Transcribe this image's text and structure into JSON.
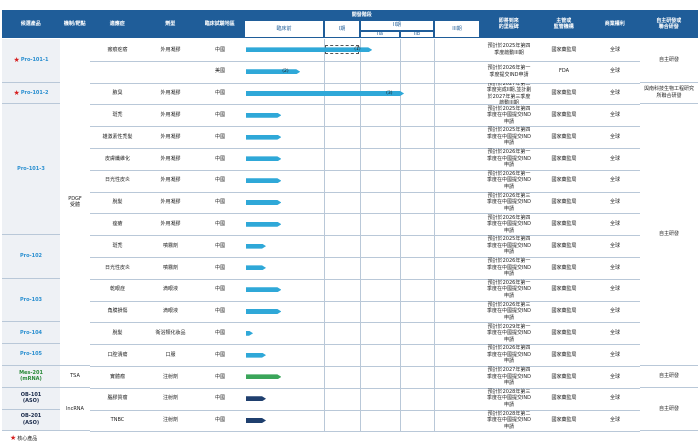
{
  "headers": {
    "candidate": "候選產品",
    "mechanism": "機制/靶點",
    "indication": "適應症",
    "dosage": "劑型",
    "region": "臨床試驗地區",
    "progress": "開發階段",
    "preclinical": "臨床前",
    "phase1": "I期",
    "phase2": "II期",
    "phase2a": "IIa",
    "phase2b": "IIb",
    "phase3": "III期",
    "milestone": "即將到來\n的里程碑",
    "regulator": "主管或\n監管機構",
    "rights": "商業權利",
    "partner": "自主研發或\n聯合研發"
  },
  "rows": [
    {
      "indication": "瘢痕疙瘩",
      "dosage": "外用凝膠",
      "region": "中國",
      "milestone": "預計於2025年第四季度啟動III期",
      "regulator": "國家藥監局",
      "rights": "全球",
      "bar_end": 0.535,
      "bar_label": "(1)",
      "color": "#2fa8d8"
    },
    {
      "indication": "",
      "dosage": "",
      "region": "美國",
      "milestone": "預計於2026年第一季度提交IND申請",
      "regulator": "FDA",
      "rights": "全球",
      "bar_end": 0.23,
      "bar_label": "(2)",
      "color": "#2fa8d8"
    },
    {
      "indication": "腋臭",
      "dosage": "外用凝膠",
      "region": "中國",
      "milestone": "預計於2027年第二季度完成II期,並計劃於2027年第三季度啟動III期",
      "regulator": "國家藥監局",
      "rights": "全球",
      "bar_end": 0.67,
      "bar_label": "(3)",
      "color": "#2fa8d8"
    },
    {
      "indication": "斑禿",
      "dosage": "外用凝膠",
      "region": "中國",
      "milestone": "預計於2025年第四季度在中國提交IND申請",
      "regulator": "國家藥監局",
      "rights": "全球",
      "bar_end": 0.15,
      "bar_label": "",
      "color": "#2fa8d8"
    },
    {
      "indication": "雄激素性禿髮",
      "dosage": "外用凝膠",
      "region": "中國",
      "milestone": "預計於2025年第四季度在中國提交IND申請",
      "regulator": "國家藥監局",
      "rights": "全球",
      "bar_end": 0.15,
      "bar_label": "",
      "color": "#2fa8d8"
    },
    {
      "indication": "皮膚纖維化",
      "dosage": "外用凝膠",
      "region": "中國",
      "milestone": "預計於2026年第一季度在中國提交IND申請",
      "regulator": "國家藥監局",
      "rights": "全球",
      "bar_end": 0.15,
      "bar_label": "",
      "color": "#2fa8d8"
    },
    {
      "indication": "日光性皮炎",
      "dosage": "外用凝膠",
      "region": "中國",
      "milestone": "預計於2026年第一季度在中國提交IND申請",
      "regulator": "國家藥監局",
      "rights": "全球",
      "bar_end": 0.15,
      "bar_label": "",
      "color": "#2fa8d8"
    },
    {
      "indication": "脫髮",
      "dosage": "外用凝膠",
      "region": "中國",
      "milestone": "預計於2026年第三季度在中國提交IND申請",
      "regulator": "國家藥監局",
      "rights": "全球",
      "bar_end": 0.15,
      "bar_label": "",
      "color": "#2fa8d8"
    },
    {
      "indication": "痤瘡",
      "dosage": "外用凝膠",
      "region": "中國",
      "milestone": "預計於2026年第四季度在中國提交IND申請",
      "regulator": "國家藥監局",
      "rights": "全球",
      "bar_end": 0.15,
      "bar_label": "",
      "color": "#2fa8d8"
    },
    {
      "indication": "斑禿",
      "dosage": "噴霧劑",
      "region": "中國",
      "milestone": "預計於2025年第四季度在中國提交IND申請",
      "regulator": "國家藥監局",
      "rights": "全球",
      "bar_end": 0.085,
      "bar_label": "",
      "color": "#2fa8d8"
    },
    {
      "indication": "日光性皮炎",
      "dosage": "噴霧劑",
      "region": "中國",
      "milestone": "預計於2026年第一季度在中國提交IND申請",
      "regulator": "國家藥監局",
      "rights": "全球",
      "bar_end": 0.085,
      "bar_label": "",
      "color": "#2fa8d8"
    },
    {
      "indication": "乾眼症",
      "dosage": "滴眼液",
      "region": "中國",
      "milestone": "預計於2026年第一季度在中國提交IND申請",
      "regulator": "國家藥監局",
      "rights": "全球",
      "bar_end": 0.15,
      "bar_label": "",
      "color": "#2fa8d8"
    },
    {
      "indication": "角膜損傷",
      "dosage": "滴眼液",
      "region": "中國",
      "milestone": "預計於2026年第三季度在中國提交IND申請",
      "regulator": "國家藥監局",
      "rights": "全球",
      "bar_end": 0.15,
      "bar_label": "",
      "color": "#2fa8d8"
    },
    {
      "indication": "脫髮",
      "dosage": "衛浴類化妝品",
      "region": "中國",
      "milestone": "預計於2029年第一季度在中國提交IND申請",
      "regulator": "國家藥監局",
      "rights": "全球",
      "bar_end": 0.03,
      "bar_label": "",
      "color": "#2fa8d8"
    },
    {
      "indication": "口腔潰瘍",
      "dosage": "口服",
      "region": "中國",
      "milestone": "預計於2026年第四季度在中國提交IND申請",
      "regulator": "國家藥監局",
      "rights": "全球",
      "bar_end": 0.085,
      "bar_label": "",
      "color": "#2fa8d8"
    },
    {
      "indication": "實體瘤",
      "dosage": "注射劑",
      "region": "中國",
      "milestone": "預計於2027年第四季度在中國提交IND申請",
      "regulator": "國家藥監局",
      "rights": "全球",
      "bar_end": 0.15,
      "bar_label": "",
      "color": "#3aa55a"
    },
    {
      "indication": "腦膠質瘤",
      "dosage": "注射劑",
      "region": "中國",
      "milestone": "預計於2028年第三季度在中國提交IND申請",
      "regulator": "國家藥監局",
      "rights": "全球",
      "bar_end": 0.085,
      "bar_label": "",
      "color": "#1f3f6e"
    },
    {
      "indication": "TNBC",
      "dosage": "注射劑",
      "region": "中國",
      "milestone": "預計於2028年第二季度在中國提交IND申請",
      "regulator": "國家藥監局",
      "rights": "全球",
      "bar_end": 0.085,
      "bar_label": "",
      "color": "#1f3f6e"
    }
  ],
  "products": [
    {
      "name": "Pro-101-1",
      "star": true,
      "rows": [
        0,
        1
      ],
      "style": "prod"
    },
    {
      "name": "Pro-101-2",
      "star": true,
      "rows": [
        2,
        2
      ],
      "style": "prod"
    },
    {
      "name": "Pro-101-3",
      "star": false,
      "rows": [
        3,
        8
      ],
      "style": "prod"
    },
    {
      "name": "Pro-102",
      "star": false,
      "rows": [
        9,
        10
      ],
      "style": "prod"
    },
    {
      "name": "Pro-103",
      "star": false,
      "rows": [
        11,
        12
      ],
      "style": "prod"
    },
    {
      "name": "Pro-104",
      "star": false,
      "rows": [
        13,
        13
      ],
      "style": "prod"
    },
    {
      "name": "Pro-105",
      "star": false,
      "rows": [
        14,
        14
      ],
      "style": "prod"
    },
    {
      "name": "Mes-201\n(mRNA)",
      "star": false,
      "rows": [
        15,
        15
      ],
      "style": "prod-green"
    },
    {
      "name": "OB-101\n(ASO)",
      "star": false,
      "rows": [
        16,
        16
      ],
      "style": "prod-dark"
    },
    {
      "name": "OB-201\n(ASO)",
      "star": false,
      "rows": [
        17,
        17
      ],
      "style": "prod-dark"
    }
  ],
  "mechanisms": [
    {
      "name": "PDGF\n受體",
      "rows": [
        0,
        14
      ]
    },
    {
      "name": "TSA",
      "rows": [
        15,
        15
      ]
    },
    {
      "name": "lncRNA",
      "rows": [
        16,
        17
      ]
    }
  ],
  "partners": [
    {
      "name": "自主研發",
      "rows": [
        0,
        1
      ]
    },
    {
      "name": "與南科技生物工程研究所聯合研發",
      "rows": [
        2,
        2
      ]
    },
    {
      "name": "自主研發",
      "rows": [
        3,
        14
      ]
    },
    {
      "name": "自主研發",
      "rows": [
        15,
        15
      ]
    },
    {
      "name": "自主研發",
      "rows": [
        16,
        17
      ]
    }
  ],
  "legend": {
    "label": "核心產品"
  }
}
